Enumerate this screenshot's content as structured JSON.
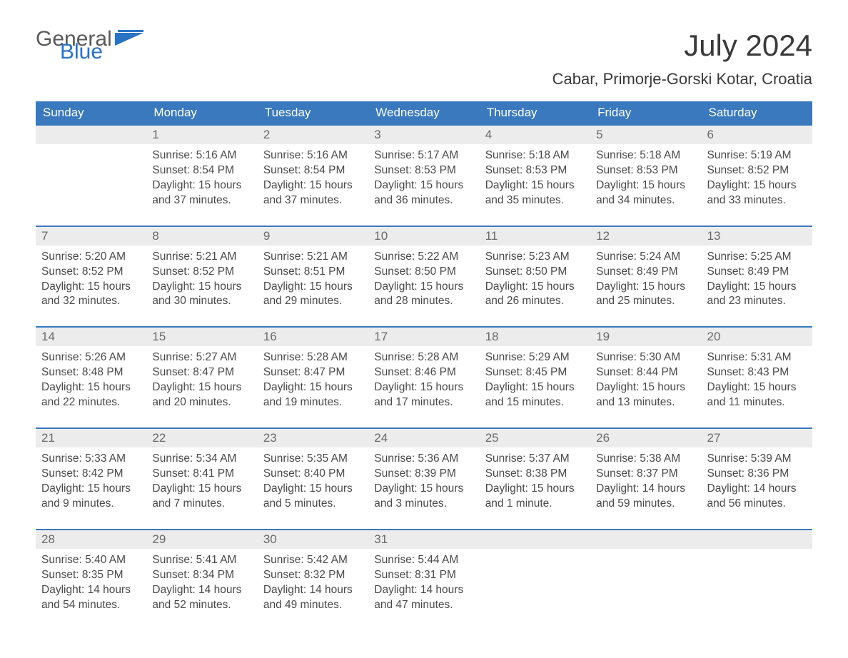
{
  "brand": {
    "part1": "General",
    "part2": "Blue"
  },
  "title": "July 2024",
  "subtitle": "Cabar, Primorje-Gorski Kotar, Croatia",
  "colors": {
    "header_bg": "#3a79bd",
    "header_text": "#ffffff",
    "daynum_bg": "#ececec",
    "daynum_border": "#3a79bd",
    "text": "#4a4a4a",
    "brand_blue": "#2a72c4"
  },
  "day_headers": [
    "Sunday",
    "Monday",
    "Tuesday",
    "Wednesday",
    "Thursday",
    "Friday",
    "Saturday"
  ],
  "weeks": [
    [
      {
        "n": "",
        "lines": []
      },
      {
        "n": "1",
        "lines": [
          "Sunrise: 5:16 AM",
          "Sunset: 8:54 PM",
          "Daylight: 15 hours",
          "and 37 minutes."
        ]
      },
      {
        "n": "2",
        "lines": [
          "Sunrise: 5:16 AM",
          "Sunset: 8:54 PM",
          "Daylight: 15 hours",
          "and 37 minutes."
        ]
      },
      {
        "n": "3",
        "lines": [
          "Sunrise: 5:17 AM",
          "Sunset: 8:53 PM",
          "Daylight: 15 hours",
          "and 36 minutes."
        ]
      },
      {
        "n": "4",
        "lines": [
          "Sunrise: 5:18 AM",
          "Sunset: 8:53 PM",
          "Daylight: 15 hours",
          "and 35 minutes."
        ]
      },
      {
        "n": "5",
        "lines": [
          "Sunrise: 5:18 AM",
          "Sunset: 8:53 PM",
          "Daylight: 15 hours",
          "and 34 minutes."
        ]
      },
      {
        "n": "6",
        "lines": [
          "Sunrise: 5:19 AM",
          "Sunset: 8:52 PM",
          "Daylight: 15 hours",
          "and 33 minutes."
        ]
      }
    ],
    [
      {
        "n": "7",
        "lines": [
          "Sunrise: 5:20 AM",
          "Sunset: 8:52 PM",
          "Daylight: 15 hours",
          "and 32 minutes."
        ]
      },
      {
        "n": "8",
        "lines": [
          "Sunrise: 5:21 AM",
          "Sunset: 8:52 PM",
          "Daylight: 15 hours",
          "and 30 minutes."
        ]
      },
      {
        "n": "9",
        "lines": [
          "Sunrise: 5:21 AM",
          "Sunset: 8:51 PM",
          "Daylight: 15 hours",
          "and 29 minutes."
        ]
      },
      {
        "n": "10",
        "lines": [
          "Sunrise: 5:22 AM",
          "Sunset: 8:50 PM",
          "Daylight: 15 hours",
          "and 28 minutes."
        ]
      },
      {
        "n": "11",
        "lines": [
          "Sunrise: 5:23 AM",
          "Sunset: 8:50 PM",
          "Daylight: 15 hours",
          "and 26 minutes."
        ]
      },
      {
        "n": "12",
        "lines": [
          "Sunrise: 5:24 AM",
          "Sunset: 8:49 PM",
          "Daylight: 15 hours",
          "and 25 minutes."
        ]
      },
      {
        "n": "13",
        "lines": [
          "Sunrise: 5:25 AM",
          "Sunset: 8:49 PM",
          "Daylight: 15 hours",
          "and 23 minutes."
        ]
      }
    ],
    [
      {
        "n": "14",
        "lines": [
          "Sunrise: 5:26 AM",
          "Sunset: 8:48 PM",
          "Daylight: 15 hours",
          "and 22 minutes."
        ]
      },
      {
        "n": "15",
        "lines": [
          "Sunrise: 5:27 AM",
          "Sunset: 8:47 PM",
          "Daylight: 15 hours",
          "and 20 minutes."
        ]
      },
      {
        "n": "16",
        "lines": [
          "Sunrise: 5:28 AM",
          "Sunset: 8:47 PM",
          "Daylight: 15 hours",
          "and 19 minutes."
        ]
      },
      {
        "n": "17",
        "lines": [
          "Sunrise: 5:28 AM",
          "Sunset: 8:46 PM",
          "Daylight: 15 hours",
          "and 17 minutes."
        ]
      },
      {
        "n": "18",
        "lines": [
          "Sunrise: 5:29 AM",
          "Sunset: 8:45 PM",
          "Daylight: 15 hours",
          "and 15 minutes."
        ]
      },
      {
        "n": "19",
        "lines": [
          "Sunrise: 5:30 AM",
          "Sunset: 8:44 PM",
          "Daylight: 15 hours",
          "and 13 minutes."
        ]
      },
      {
        "n": "20",
        "lines": [
          "Sunrise: 5:31 AM",
          "Sunset: 8:43 PM",
          "Daylight: 15 hours",
          "and 11 minutes."
        ]
      }
    ],
    [
      {
        "n": "21",
        "lines": [
          "Sunrise: 5:33 AM",
          "Sunset: 8:42 PM",
          "Daylight: 15 hours",
          "and 9 minutes."
        ]
      },
      {
        "n": "22",
        "lines": [
          "Sunrise: 5:34 AM",
          "Sunset: 8:41 PM",
          "Daylight: 15 hours",
          "and 7 minutes."
        ]
      },
      {
        "n": "23",
        "lines": [
          "Sunrise: 5:35 AM",
          "Sunset: 8:40 PM",
          "Daylight: 15 hours",
          "and 5 minutes."
        ]
      },
      {
        "n": "24",
        "lines": [
          "Sunrise: 5:36 AM",
          "Sunset: 8:39 PM",
          "Daylight: 15 hours",
          "and 3 minutes."
        ]
      },
      {
        "n": "25",
        "lines": [
          "Sunrise: 5:37 AM",
          "Sunset: 8:38 PM",
          "Daylight: 15 hours",
          "and 1 minute."
        ]
      },
      {
        "n": "26",
        "lines": [
          "Sunrise: 5:38 AM",
          "Sunset: 8:37 PM",
          "Daylight: 14 hours",
          "and 59 minutes."
        ]
      },
      {
        "n": "27",
        "lines": [
          "Sunrise: 5:39 AM",
          "Sunset: 8:36 PM",
          "Daylight: 14 hours",
          "and 56 minutes."
        ]
      }
    ],
    [
      {
        "n": "28",
        "lines": [
          "Sunrise: 5:40 AM",
          "Sunset: 8:35 PM",
          "Daylight: 14 hours",
          "and 54 minutes."
        ]
      },
      {
        "n": "29",
        "lines": [
          "Sunrise: 5:41 AM",
          "Sunset: 8:34 PM",
          "Daylight: 14 hours",
          "and 52 minutes."
        ]
      },
      {
        "n": "30",
        "lines": [
          "Sunrise: 5:42 AM",
          "Sunset: 8:32 PM",
          "Daylight: 14 hours",
          "and 49 minutes."
        ]
      },
      {
        "n": "31",
        "lines": [
          "Sunrise: 5:44 AM",
          "Sunset: 8:31 PM",
          "Daylight: 14 hours",
          "and 47 minutes."
        ]
      },
      {
        "n": "",
        "lines": []
      },
      {
        "n": "",
        "lines": []
      },
      {
        "n": "",
        "lines": []
      }
    ]
  ]
}
